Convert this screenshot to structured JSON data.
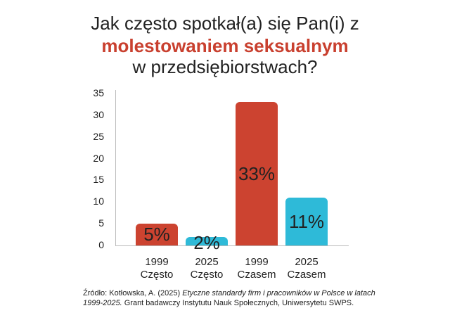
{
  "title": {
    "line1": "Jak często spotkał(a) się Pan(i) z",
    "line2": "molestowaniem seksualnym",
    "line3": "w przedsiębiorstwach?"
  },
  "colors": {
    "red": "#cc4330",
    "cyan": "#2ebad8",
    "title_accent": "#c9402f"
  },
  "yaxis": {
    "ticks": [
      "35",
      "30",
      "25",
      "20",
      "15",
      "10",
      "5",
      "0"
    ]
  },
  "bars": [
    {
      "year": "1999",
      "label": "Często",
      "value": 5,
      "display": "5%",
      "color": "#cc4330"
    },
    {
      "year": "2025",
      "label": "Często",
      "value": 2,
      "display": "2%",
      "color": "#2ebad8"
    },
    {
      "year": "1999",
      "label": "Czasem",
      "value": 33,
      "display": "33%",
      "color": "#cc4330"
    },
    {
      "year": "2025",
      "label": "Czasem",
      "value": 11,
      "display": "11%",
      "color": "#2ebad8"
    }
  ],
  "source": {
    "prefix": "Źródło: Kotłowska, A. (2025) ",
    "italic": "Etyczne standardy firm i pracowników w Polsce w latach 1999-2025.",
    "suffix": " Grant badawczy Instytutu Nauk Społecznych, Uniwersytetu SWPS."
  },
  "chart_data": {
    "type": "bar",
    "title": "Jak często spotkał(a) się Pan(i) z molestowaniem seksualnym w przedsiębiorstwach?",
    "categories": [
      "1999 Często",
      "2025 Często",
      "1999 Czasem",
      "2025 Czasem"
    ],
    "values": [
      5,
      2,
      33,
      11
    ],
    "data_labels": [
      "5%",
      "2%",
      "33%",
      "11%"
    ],
    "xlabel": "",
    "ylabel": "",
    "ylim": [
      0,
      35
    ],
    "yticks": [
      0,
      5,
      10,
      15,
      20,
      25,
      30,
      35
    ],
    "grid": false,
    "legend": null
  }
}
